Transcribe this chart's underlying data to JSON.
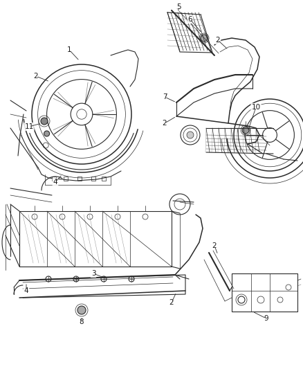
{
  "background_color": "#ffffff",
  "fig_width": 4.38,
  "fig_height": 5.33,
  "dpi": 100,
  "line_color": "#2a2a2a",
  "text_color": "#1a1a1a",
  "gray_fill": "#e8e8e8",
  "mid_gray": "#c0c0c0",
  "dark_gray": "#888888"
}
